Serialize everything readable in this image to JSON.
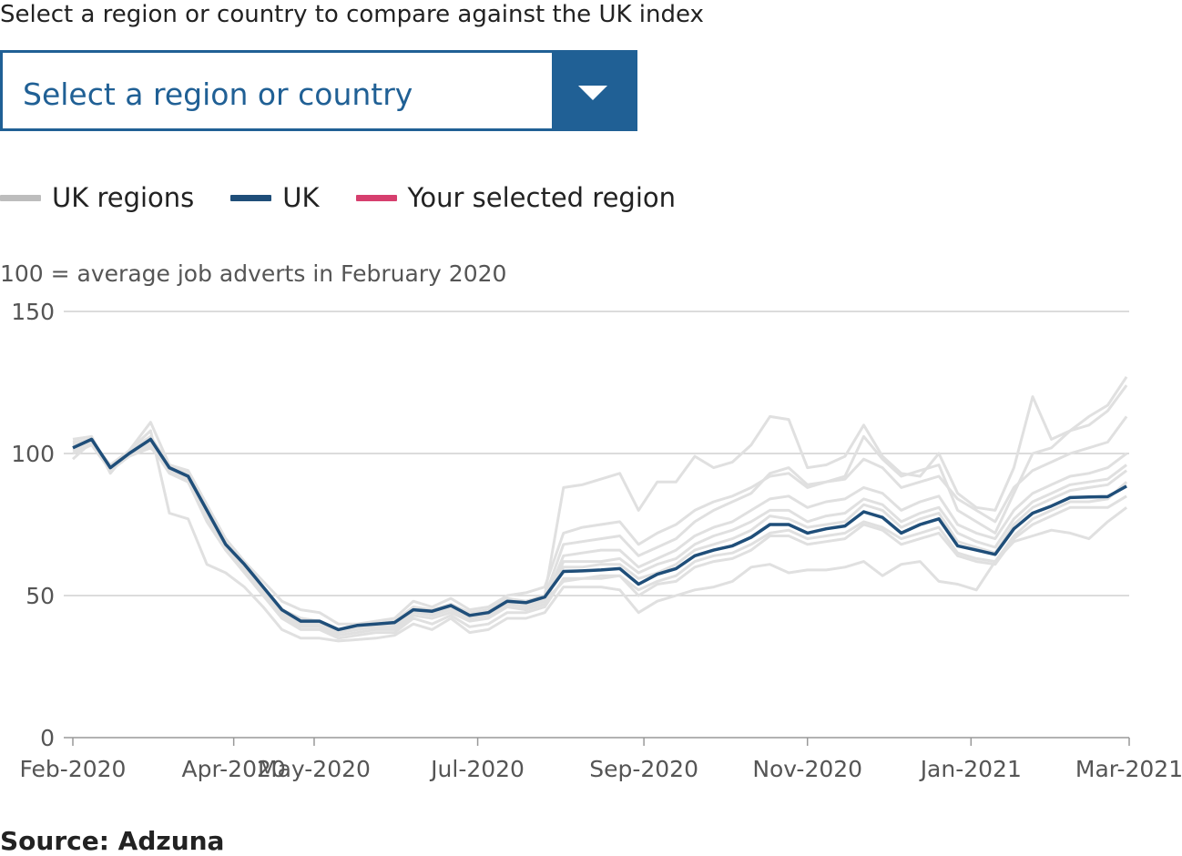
{
  "prompt_text": "Select a region or country to compare against the UK index",
  "selector": {
    "value": "Select a region or country",
    "icon": "chevron-down-icon"
  },
  "legend": [
    {
      "label": "UK regions",
      "color": "#bdbdbd"
    },
    {
      "label": "UK",
      "color": "#1f4e79"
    },
    {
      "label": "Your selected region",
      "color": "#d63f6e"
    }
  ],
  "unit_note": "100 = average job adverts in February 2020",
  "source": "Source: Adzuna",
  "chart_data": {
    "type": "line",
    "ylim": [
      0,
      150
    ],
    "yticks": [
      0,
      50,
      100,
      150
    ],
    "xlim": [
      "2020-02-01",
      "2021-03-01"
    ],
    "xticks": [
      "Feb-2020",
      "Apr-2020",
      "May-2020",
      "Jul-2020",
      "Sep-2020",
      "Nov-2020",
      "Jan-2021",
      "Mar-2021"
    ],
    "grid": true,
    "series": [
      {
        "name": "UK",
        "color": "#1f4e79",
        "x": [
          "2020-02-01",
          "2020-02-08",
          "2020-02-15",
          "2020-02-22",
          "2020-03-01",
          "2020-03-08",
          "2020-03-15",
          "2020-03-22",
          "2020-03-29",
          "2020-04-05",
          "2020-04-12",
          "2020-04-19",
          "2020-04-26",
          "2020-05-03",
          "2020-05-10",
          "2020-05-17",
          "2020-05-24",
          "2020-05-31",
          "2020-06-07",
          "2020-06-14",
          "2020-06-21",
          "2020-06-28",
          "2020-07-05",
          "2020-07-12",
          "2020-07-19",
          "2020-07-26",
          "2020-08-02",
          "2020-08-09",
          "2020-08-16",
          "2020-08-23",
          "2020-08-30",
          "2020-09-06",
          "2020-09-13",
          "2020-09-20",
          "2020-09-27",
          "2020-10-04",
          "2020-10-11",
          "2020-10-18",
          "2020-10-25",
          "2020-11-01",
          "2020-11-08",
          "2020-11-15",
          "2020-11-22",
          "2020-11-29",
          "2020-12-06",
          "2020-12-13",
          "2020-12-20",
          "2020-12-27",
          "2021-01-03",
          "2021-01-10",
          "2021-01-17",
          "2021-01-24",
          "2021-01-31",
          "2021-02-07",
          "2021-02-14",
          "2021-02-21",
          "2021-02-28"
        ],
        "y": [
          102,
          105,
          95,
          100,
          105,
          95,
          92,
          80,
          68,
          61,
          53,
          45,
          41,
          41,
          38,
          39.5,
          40,
          40.5,
          45,
          44.5,
          46.5,
          43,
          44,
          48,
          47.5,
          49.5,
          58.5,
          58.7,
          59,
          59.5,
          54,
          57.5,
          59.5,
          64,
          66,
          67.5,
          70.5,
          75,
          75,
          72,
          73.5,
          74.5,
          79.5,
          77.5,
          72,
          75,
          77,
          67.5,
          66,
          64.5,
          73.5,
          79,
          81.5,
          84.5,
          84.7,
          84.8,
          88.5
        ]
      }
    ],
    "region_series": [
      [
        105,
        106,
        93,
        101,
        111,
        96,
        94,
        82,
        70,
        62,
        55,
        48,
        45,
        44,
        40,
        40,
        41,
        42,
        48,
        46,
        49,
        45,
        46,
        50,
        51,
        53,
        72,
        74,
        75,
        76,
        68,
        72,
        75,
        80,
        83,
        85,
        88,
        92,
        93,
        88,
        90,
        91,
        98,
        95,
        88,
        90,
        92,
        84,
        80,
        76,
        88,
        94,
        97,
        100,
        102,
        104,
        113
      ],
      [
        104,
        104,
        94,
        99,
        104,
        94,
        91,
        79,
        67,
        60,
        52,
        44,
        40,
        40,
        37,
        38,
        39,
        39,
        44,
        44,
        45,
        42,
        43,
        47,
        46,
        48,
        64,
        65,
        66,
        66,
        60,
        63,
        66,
        71,
        74,
        76,
        80,
        84,
        85,
        81,
        83,
        84,
        88,
        86,
        80,
        83,
        85,
        75,
        72,
        70,
        80,
        86,
        89,
        92,
        93,
        95,
        100
      ],
      [
        100,
        103,
        96,
        99,
        103,
        93,
        90,
        76,
        66,
        58,
        50,
        42,
        38,
        38,
        35,
        36,
        37,
        37,
        42,
        40,
        43,
        39,
        40,
        44,
        44,
        46,
        56,
        56,
        56,
        57,
        50,
        54,
        55,
        60,
        62,
        63,
        66,
        71,
        71,
        68,
        69,
        70,
        75,
        73,
        68,
        70,
        72,
        64,
        62,
        61,
        70,
        75,
        78,
        81,
        81,
        81,
        85
      ],
      [
        103,
        104,
        94,
        100,
        106,
        96,
        93,
        81,
        69,
        61,
        53,
        45,
        42,
        41,
        38,
        39,
        40,
        40,
        45,
        44,
        46,
        43,
        44,
        48,
        47,
        49,
        60,
        60,
        61,
        61,
        56,
        58,
        61,
        66,
        68,
        70,
        73,
        78,
        77,
        74,
        75,
        76,
        82,
        80,
        74,
        77,
        79,
        69,
        67,
        65,
        75,
        81,
        84,
        87,
        88,
        89,
        94
      ],
      [
        98,
        104,
        96,
        101,
        108,
        79,
        77,
        61,
        58,
        53,
        46,
        38,
        35,
        35,
        34,
        34.5,
        35,
        36,
        40,
        38,
        42,
        37,
        38,
        42,
        42,
        44,
        53,
        53,
        53,
        52,
        44,
        48,
        50,
        52,
        53,
        55,
        60,
        61,
        58,
        59,
        59,
        60,
        62,
        57,
        61,
        62,
        55,
        54,
        52,
        62,
        69,
        71,
        73,
        72,
        70,
        76,
        81
      ],
      [
        101,
        103,
        94,
        99,
        102,
        95,
        90,
        78,
        66,
        59,
        51,
        43,
        39,
        39,
        36,
        37,
        38,
        38,
        43,
        42,
        44,
        41,
        42,
        46,
        45,
        47,
        62,
        62,
        62,
        63,
        58,
        61,
        63,
        68,
        71,
        73,
        76,
        80,
        80,
        76,
        78,
        79,
        84,
        82,
        76,
        79,
        81,
        72,
        69,
        67,
        77,
        83,
        86,
        89,
        90,
        91,
        96
      ],
      [
        104,
        105,
        95,
        101,
        106,
        96,
        93,
        81,
        69,
        61,
        53,
        45,
        42,
        41,
        38,
        39,
        40,
        41,
        46,
        45,
        47,
        44,
        45,
        49,
        48,
        50,
        88,
        89,
        91,
        93,
        80,
        90,
        90,
        99,
        95,
        97,
        103,
        113,
        112,
        95,
        96,
        99,
        110,
        99,
        93,
        92,
        100,
        86,
        81,
        80,
        95,
        120,
        105,
        108,
        113,
        117,
        127
      ],
      [
        102,
        104,
        95,
        100,
        105,
        95,
        92,
        80,
        68,
        61,
        53,
        45,
        41,
        41,
        38,
        39.5,
        40,
        40.5,
        45,
        44.5,
        46.5,
        43,
        44,
        48,
        47.5,
        49.5,
        68,
        69,
        70,
        71,
        64,
        67,
        70,
        76,
        80,
        83,
        86,
        93,
        95,
        89,
        90,
        92,
        106,
        98,
        92,
        94,
        96,
        80,
        76,
        72,
        86,
        100,
        102,
        108,
        110,
        115,
        124
      ],
      [
        103,
        104,
        94,
        100,
        104,
        95,
        91,
        79,
        67,
        60,
        52,
        44,
        40,
        40,
        37,
        38,
        39,
        39,
        44,
        43,
        45,
        42,
        43,
        47,
        46,
        48,
        55,
        56,
        57,
        57,
        52,
        55,
        57,
        62,
        64,
        65,
        68,
        72,
        73,
        70,
        71,
        72,
        76,
        74,
        70,
        72,
        74,
        65,
        63,
        62,
        71,
        77,
        80,
        83,
        83,
        84,
        90
      ]
    ]
  }
}
